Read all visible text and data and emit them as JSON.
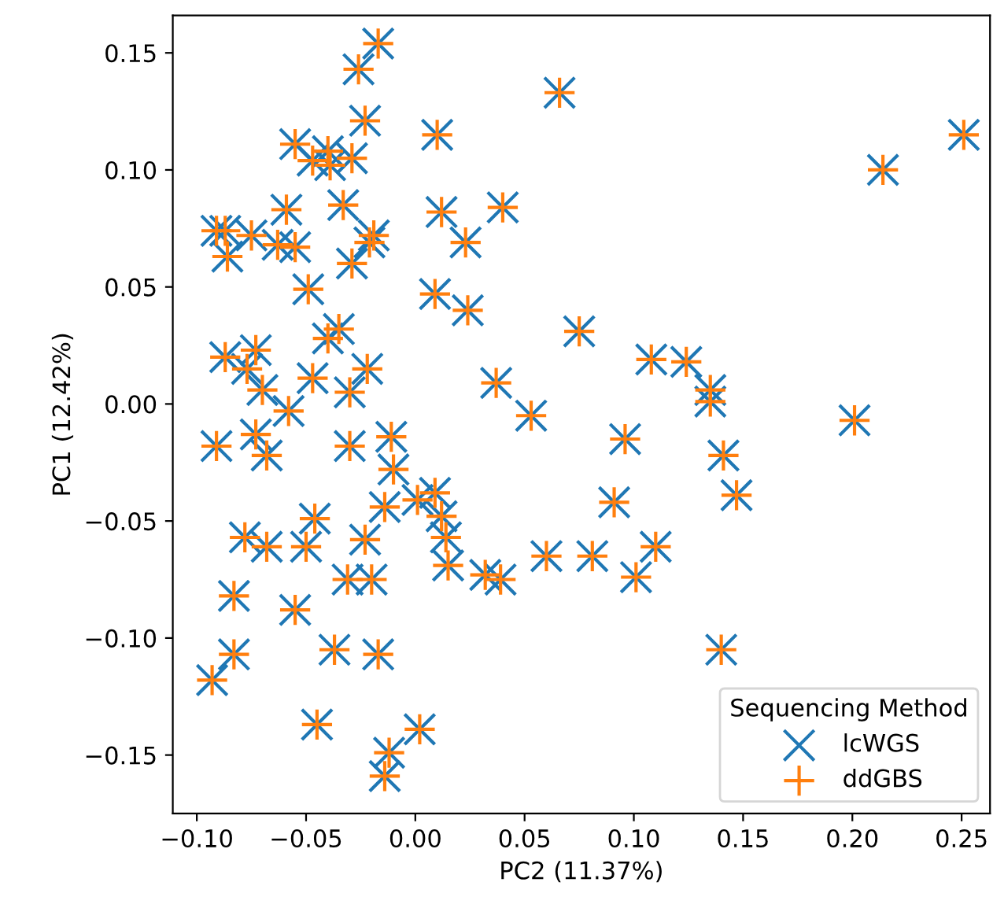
{
  "chart_data": {
    "type": "scatter",
    "xlabel": "PC2 (11.37%)",
    "ylabel": "PC1 (12.42%)",
    "legend_title": "Sequencing Method",
    "legend": "bottom right",
    "grid": false,
    "xlim": [
      -0.111,
      0.263
    ],
    "ylim": [
      -0.175,
      0.166
    ],
    "xticks": [
      {
        "value": -0.1,
        "label": "−0.10"
      },
      {
        "value": -0.05,
        "label": "−0.05"
      },
      {
        "value": 0.0,
        "label": "0.00"
      },
      {
        "value": 0.05,
        "label": "0.05"
      },
      {
        "value": 0.1,
        "label": "0.10"
      },
      {
        "value": 0.15,
        "label": "0.15"
      },
      {
        "value": 0.2,
        "label": "0.20"
      },
      {
        "value": 0.25,
        "label": "0.25"
      }
    ],
    "yticks": [
      {
        "value": -0.15,
        "label": "−0.15"
      },
      {
        "value": -0.1,
        "label": "−0.10"
      },
      {
        "value": -0.05,
        "label": "−0.05"
      },
      {
        "value": 0.0,
        "label": "0.00"
      },
      {
        "value": 0.05,
        "label": "0.05"
      },
      {
        "value": 0.1,
        "label": "0.10"
      },
      {
        "value": 0.15,
        "label": "0.15"
      }
    ],
    "x": [
      -0.017,
      -0.026,
      0.066,
      -0.023,
      0.01,
      -0.055,
      -0.047,
      -0.04,
      -0.039,
      -0.029,
      -0.059,
      -0.033,
      0.012,
      0.04,
      -0.091,
      -0.087,
      -0.075,
      -0.063,
      -0.055,
      -0.019,
      -0.021,
      -0.086,
      -0.029,
      0.023,
      -0.049,
      0.009,
      0.024,
      0.075,
      -0.035,
      -0.04,
      -0.087,
      -0.073,
      -0.077,
      -0.022,
      -0.047,
      -0.07,
      -0.03,
      0.037,
      -0.058,
      0.053,
      -0.091,
      -0.073,
      -0.068,
      -0.03,
      -0.011,
      -0.01,
      -0.046,
      -0.078,
      -0.068,
      -0.05,
      -0.014,
      0.001,
      0.009,
      0.012,
      0.014,
      -0.023,
      -0.031,
      -0.02,
      0.015,
      0.032,
      0.039,
      0.06,
      -0.083,
      -0.055,
      -0.083,
      -0.093,
      -0.037,
      -0.017,
      -0.045,
      0.002,
      -0.012,
      -0.014,
      0.251,
      0.214,
      0.108,
      0.124,
      0.135,
      0.135,
      0.201,
      0.096,
      0.141,
      0.147,
      0.091,
      0.11,
      0.081,
      0.101,
      0.14
    ],
    "series": [
      {
        "name": "lcWGS",
        "color": "#1f77b4",
        "marker": "cross",
        "values": [
          0.154,
          0.143,
          0.133,
          0.121,
          0.115,
          0.111,
          0.104,
          0.108,
          0.102,
          0.105,
          0.083,
          0.085,
          0.082,
          0.084,
          0.074,
          0.074,
          0.072,
          0.068,
          0.067,
          0.072,
          0.069,
          0.063,
          0.06,
          0.069,
          0.049,
          0.047,
          0.04,
          0.031,
          0.032,
          0.028,
          0.02,
          0.023,
          0.015,
          0.015,
          0.011,
          0.006,
          0.005,
          0.009,
          -0.003,
          -0.005,
          -0.018,
          -0.013,
          -0.022,
          -0.018,
          -0.014,
          -0.028,
          -0.049,
          -0.057,
          -0.061,
          -0.061,
          -0.044,
          -0.041,
          -0.038,
          -0.048,
          -0.057,
          -0.058,
          -0.075,
          -0.075,
          -0.069,
          -0.073,
          -0.075,
          -0.065,
          -0.082,
          -0.088,
          -0.107,
          -0.118,
          -0.105,
          -0.107,
          -0.137,
          -0.139,
          -0.149,
          -0.159,
          0.115,
          0.1,
          0.019,
          0.018,
          0.006,
          0.001,
          -0.007,
          -0.015,
          -0.022,
          -0.039,
          -0.042,
          -0.061,
          -0.065,
          -0.074,
          -0.105
        ]
      },
      {
        "name": "ddGBS",
        "color": "#ff7f0e",
        "marker": "plus",
        "values": [
          0.154,
          0.143,
          0.133,
          0.121,
          0.115,
          0.111,
          0.104,
          0.108,
          0.102,
          0.105,
          0.083,
          0.085,
          0.082,
          0.084,
          0.074,
          0.074,
          0.072,
          0.068,
          0.067,
          0.072,
          0.069,
          0.063,
          0.06,
          0.069,
          0.049,
          0.047,
          0.04,
          0.031,
          0.032,
          0.028,
          0.02,
          0.023,
          0.015,
          0.015,
          0.011,
          0.006,
          0.005,
          0.009,
          -0.003,
          -0.005,
          -0.018,
          -0.013,
          -0.022,
          -0.018,
          -0.014,
          -0.028,
          -0.049,
          -0.057,
          -0.061,
          -0.061,
          -0.044,
          -0.041,
          -0.038,
          -0.048,
          -0.057,
          -0.058,
          -0.075,
          -0.075,
          -0.069,
          -0.073,
          -0.075,
          -0.065,
          -0.082,
          -0.088,
          -0.107,
          -0.118,
          -0.105,
          -0.107,
          -0.137,
          -0.139,
          -0.149,
          -0.159,
          0.115,
          0.1,
          0.019,
          0.018,
          0.006,
          0.001,
          -0.007,
          -0.015,
          -0.022,
          -0.039,
          -0.042,
          -0.061,
          -0.065,
          -0.074,
          -0.105
        ]
      }
    ]
  }
}
